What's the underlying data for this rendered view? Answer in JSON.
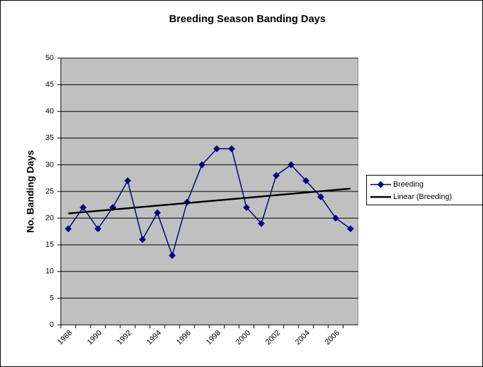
{
  "chart_data": {
    "type": "line",
    "title": "Breeding Season Banding Days",
    "y_label": "No. Banding Days",
    "categories": [
      "1988",
      null,
      "1990",
      null,
      "1992",
      null,
      "1994",
      null,
      "1996",
      null,
      "1998",
      null,
      "2000",
      null,
      "2002",
      null,
      "2004",
      null,
      "2006",
      null
    ],
    "series": [
      {
        "name": "Breeding",
        "color": "#000080",
        "values": [
          18,
          22,
          18,
          22,
          27,
          16,
          21,
          13,
          23,
          30,
          33,
          33,
          22,
          19,
          28,
          30,
          27,
          24,
          20,
          18
        ]
      }
    ],
    "trendline": {
      "name": "Linear (Breeding)",
      "color": "#000000"
    },
    "ylim": [
      0,
      50
    ],
    "yticks": [
      0,
      5,
      10,
      15,
      20,
      25,
      30,
      35,
      40,
      45,
      50
    ],
    "grid": true,
    "legend": "right"
  }
}
